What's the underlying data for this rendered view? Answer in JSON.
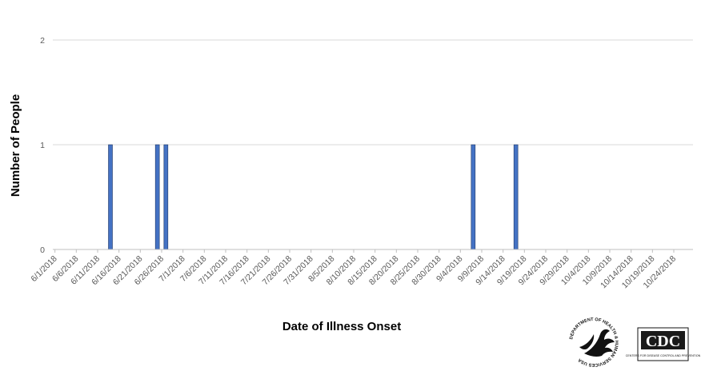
{
  "chart_data": {
    "type": "bar",
    "xlabel": "Date of Illness Onset",
    "ylabel": "Number of People",
    "ylim": [
      0,
      2
    ],
    "yticks": [
      0,
      1,
      2
    ],
    "grid": true,
    "legend": "none",
    "bar_color": "#4472C4",
    "x_start_date": "6/1/2018",
    "x_end_date": "10/28/2018",
    "x_tick_labels": [
      "6/1/2018",
      "6/6/2018",
      "6/11/2018",
      "6/16/2018",
      "6/21/2018",
      "6/26/2018",
      "7/1/2018",
      "7/6/2018",
      "7/11/2018",
      "7/16/2018",
      "7/21/2018",
      "7/26/2018",
      "7/31/2018",
      "8/5/2018",
      "8/10/2018",
      "8/15/2018",
      "8/20/2018",
      "8/25/2018",
      "8/30/2018",
      "9/4/2018",
      "9/9/2018",
      "9/14/2018",
      "9/19/2018",
      "9/24/2018",
      "9/29/2018",
      "10/4/2018",
      "10/9/2018",
      "10/14/2018",
      "10/19/2018",
      "10/24/2018"
    ],
    "points": [
      {
        "date": "6/14/2018",
        "value": 1
      },
      {
        "date": "6/25/2018",
        "value": 1
      },
      {
        "date": "6/27/2018",
        "value": 1
      },
      {
        "date": "9/7/2018",
        "value": 1
      },
      {
        "date": "9/17/2018",
        "value": 1
      }
    ]
  },
  "logos": {
    "hhs": "DEPARTMENT OF HEALTH & HUMAN SERVICES USA",
    "cdc": "CDC",
    "cdc_tagline": "CENTERS FOR DISEASE CONTROL AND PREVENTION"
  }
}
